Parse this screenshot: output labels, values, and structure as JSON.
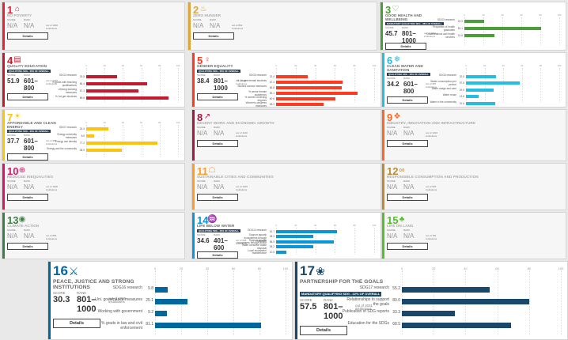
{
  "common": {
    "score_label": "SCORE",
    "rank_label": "RANK",
    "details": "Details",
    "na": "N/A"
  },
  "sdgs": [
    {
      "n": "1",
      "title": "NO POVERTY",
      "color": "#e5243b",
      "icon": "family-icon",
      "glyph": "⌂",
      "score": "N/A",
      "rank": "N/A",
      "outof": "out of 1060 institutions"
    },
    {
      "n": "2",
      "title": "ZERO HUNGER",
      "color": "#dda63a",
      "icon": "bowl-icon",
      "glyph": "♨",
      "score": "N/A",
      "rank": "N/A",
      "outof": "out of 802 institutions"
    },
    {
      "n": "3",
      "title": "GOOD HEALTH AND WELLBEING",
      "color": "#4c9f38",
      "icon": "heartbeat-icon",
      "glyph": "♡",
      "badge": "MANDATORY QUALIFYING SDG - 28% OF OVERALL",
      "score": "45.7",
      "rank": "801– 1000",
      "outof": "out of 1300 institutions",
      "metrics": [
        {
          "label": "SDG3 research",
          "value": "20.9"
        },
        {
          "label": "Proportion of health graduates",
          "value": "81.1"
        },
        {
          "label": "Collaborations and health services",
          "value": "31.6"
        }
      ]
    },
    {
      "n": "4",
      "title": "QUALITY EDUCATION",
      "color": "#c5192d",
      "icon": "book-icon",
      "glyph": "▤",
      "badge": "QUALIFYING SDG - 26% OF OVERALL",
      "score": "51.9",
      "rank": "601– 800",
      "outof": "out of 1035 institutions",
      "metrics": [
        {
          "label": "SDG4 research",
          "value": "33.8"
        },
        {
          "label": "% grads with teaching qualifications",
          "value": "66.4"
        },
        {
          "label": "Lifelong learning measures",
          "value": "57.2"
        },
        {
          "label": "% 1st gen students",
          "value": "89.6"
        }
      ]
    },
    {
      "n": "5",
      "title": "GENDER EQUALITY",
      "color": "#ff3a21",
      "icon": "gender-icon",
      "glyph": "♀",
      "badge": "QUALIFYING SDG - 26% OF OVERALL",
      "score": "38.4",
      "rank": "801– 1000",
      "outof": "out of 1367 institutions",
      "metrics": [
        {
          "label": "SDG5 research",
          "value": "32.4"
        },
        {
          "label": "% 1st gen female students",
          "value": "67.4"
        },
        {
          "label": "Student access measures",
          "value": "66.8"
        },
        {
          "label": "% senior female academics",
          "value": "83.1"
        },
        {
          "label": "% women receiving degrees",
          "value": "60.6"
        },
        {
          "label": "Women's progress measures",
          "value": "48.2"
        }
      ]
    },
    {
      "n": "6",
      "title": "CLEAN WATER AND SANITATION",
      "color": "#26bde2",
      "icon": "water-icon",
      "glyph": "❄",
      "badge": "QUALIFYING SDG - 26% OF OVERALL",
      "score": "34.2",
      "rank": "601– 800",
      "outof": "out of 987 institutions",
      "metrics": [
        {
          "label": "SDG6 research",
          "value": "32.5"
        },
        {
          "label": "Water consumption per person",
          "value": "57.8"
        },
        {
          "label": "Water usage and care",
          "value": "29.5"
        },
        {
          "label": "Water reuse",
          "value": "13.8"
        },
        {
          "label": "Water in the community",
          "value": "31.6"
        }
      ]
    },
    {
      "n": "7",
      "title": "AFFORDABLE AND CLEAN ENERGY",
      "color": "#fcc30b",
      "icon": "sun-icon",
      "glyph": "☀",
      "badge": "QUALIFYING SDG - 26% OF OVERALL",
      "score": "37.7",
      "rank": "601– 800",
      "outof": "out of 987 institutions",
      "metrics": [
        {
          "label": "SDG7 research",
          "value": "24.4"
        },
        {
          "label": "Energy university measures",
          "value": "8.5"
        },
        {
          "label": "Energy use density",
          "value": "77.2"
        },
        {
          "label": "Energy and the community",
          "value": "38.9"
        }
      ]
    },
    {
      "n": "8",
      "title": "DECENT WORK AND ECONOMIC GROWTH",
      "color": "#a21942",
      "icon": "growth-icon",
      "glyph": "↗",
      "score": "N/A",
      "rank": "N/A",
      "outof": "out of 1140 institutions"
    },
    {
      "n": "9",
      "title": "INDUSTRY, INNOVATION AND INFRASTRUCTURE",
      "color": "#fd6925",
      "icon": "cubes-icon",
      "glyph": "❖",
      "score": "N/A",
      "rank": "N/A",
      "outof": "out of 1016 institutions"
    },
    {
      "n": "10",
      "title": "REDUCED INEQUALITIES",
      "color": "#dd1367",
      "icon": "equality-icon",
      "glyph": "⊕",
      "score": "N/A",
      "rank": "N/A",
      "outof": "out of 1108 institutions"
    },
    {
      "n": "11",
      "title": "SUSTAINABLE CITIES AND COMMUNITIES",
      "color": "#fd9d24",
      "icon": "city-icon",
      "glyph": "☖",
      "score": "N/A",
      "rank": "N/A",
      "outof": "out of 1025 institutions"
    },
    {
      "n": "12",
      "title": "RESPONSIBLE CONSUMPTION AND PRODUCTION",
      "color": "#bf8b2e",
      "icon": "infinity-icon",
      "glyph": "∞",
      "score": "N/A",
      "rank": "N/A",
      "outof": "out of 825 institutions"
    },
    {
      "n": "13",
      "title": "CLIMATE ACTION",
      "color": "#3f7e44",
      "icon": "eye-icon",
      "glyph": "◉",
      "score": "N/A",
      "rank": "N/A",
      "outof": "out of 856 institutions"
    },
    {
      "n": "14",
      "title": "LIFE BELOW WATER",
      "color": "#0a97d9",
      "icon": "fish-icon",
      "glyph": "♒",
      "badge": "QUALIFYING SDG - 26% OF OVERALL",
      "score": "34.6",
      "rank": "401– 600",
      "outof": "out of 628 institutions",
      "metrics": [
        {
          "label": "SDG14 research",
          "value": "61.7"
        },
        {
          "label": "Support aquatic ecosystems through education",
          "value": "38.3"
        },
        {
          "label": "Support aquatic ecosystems through action",
          "value": "58.9"
        },
        {
          "label": "Water-sensitive waste disposal",
          "value": "38.2"
        },
        {
          "label": "Local ecosystem maintenance",
          "value": "10.5"
        }
      ]
    },
    {
      "n": "15",
      "title": "LIFE ON LAND",
      "color": "#56c02b",
      "icon": "tree-icon",
      "glyph": "♣",
      "score": "N/A",
      "rank": "N/A",
      "outof": "out of 781 institutions"
    },
    {
      "n": "16",
      "title": "PEACE, JUSTICE AND STRONG INSTITUTIONS",
      "color": "#00689d",
      "icon": "dove-icon",
      "glyph": "⚔",
      "badge": "",
      "score": "30.3",
      "rank": "801– 1000",
      "outof": "out of 1086 institutions",
      "metrics": [
        {
          "label": "SDG16 research",
          "value": "9.8"
        },
        {
          "label": "Uni. governance measures",
          "value": "25.1"
        },
        {
          "label": "Working with government",
          "value": "9.2"
        },
        {
          "label": "% grads in law and civil enforcement",
          "value": "81.1"
        }
      ]
    },
    {
      "n": "17",
      "title": "PARTNERSHIP FOR THE GOALS",
      "color": "#19486a",
      "icon": "rings-icon",
      "glyph": "❀",
      "badge": "MANDATORY QUALIFYING SDG - 22% OF OVERALL",
      "score": "57.5",
      "rank": "801– 1000",
      "outof": "out of 2031 institutions",
      "metrics": [
        {
          "label": "SDG17 research",
          "value": "55.2"
        },
        {
          "label": "Relationships to support the goals",
          "value": "80.0"
        },
        {
          "label": "Publication of SDG reports",
          "value": "33.3"
        },
        {
          "label": "Education for the SDGs",
          "value": "68.5"
        }
      ]
    }
  ],
  "axis": {
    "ticks": [
      "0",
      "20",
      "40",
      "60",
      "80",
      "100"
    ]
  }
}
